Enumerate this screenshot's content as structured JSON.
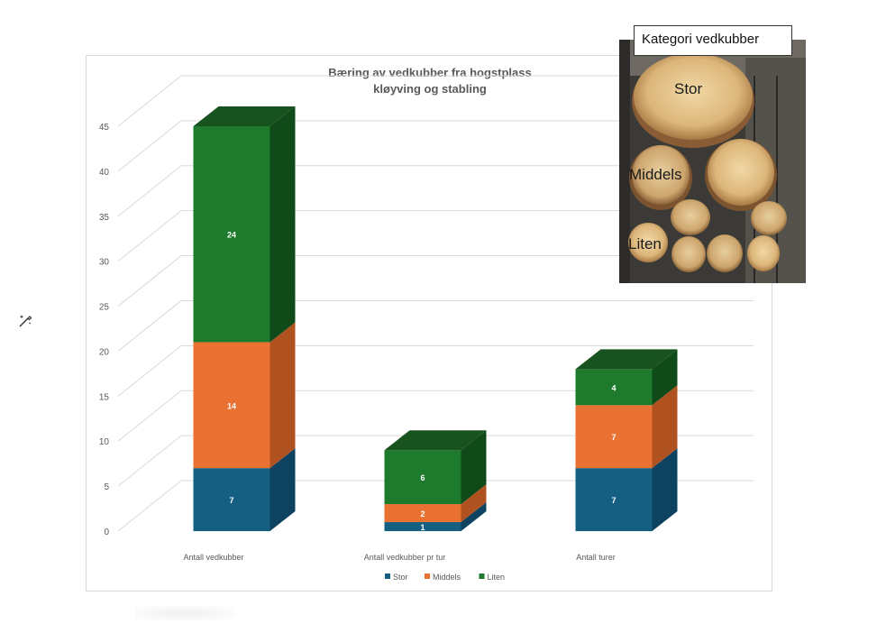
{
  "chart_data": {
    "type": "bar",
    "stacked": true,
    "three_d": true,
    "title": "Bæring av vedkubber  fra hogstplass",
    "subtitle": "kløyving og stabling",
    "categories": [
      "Antall vedkubber",
      "Antall vedkubber pr tur",
      "Antall turer"
    ],
    "series": [
      {
        "name": "Stor",
        "values": [
          7,
          1,
          7
        ],
        "color": "#155f82",
        "side": "#0d4360",
        "top": "#1d7aa6"
      },
      {
        "name": "Middels",
        "values": [
          14,
          2,
          7
        ],
        "color": "#e97132",
        "side": "#b0521f",
        "top": "#f08a52"
      },
      {
        "name": "Liten",
        "values": [
          24,
          6,
          4
        ],
        "color": "#1e7a2c",
        "side": "#104a18",
        "top": "#17521f"
      }
    ],
    "yticks": [
      0,
      5,
      10,
      15,
      20,
      25,
      30,
      35,
      40,
      45
    ],
    "ylim": [
      0,
      45
    ],
    "grid": true,
    "legend": "bottom"
  },
  "photo": {
    "title": "Kategori vedkubber",
    "labels": {
      "stor": "Stor",
      "middels": "Middels",
      "liten": "Liten"
    }
  },
  "icons": {
    "wand": "magic-wand-icon"
  }
}
